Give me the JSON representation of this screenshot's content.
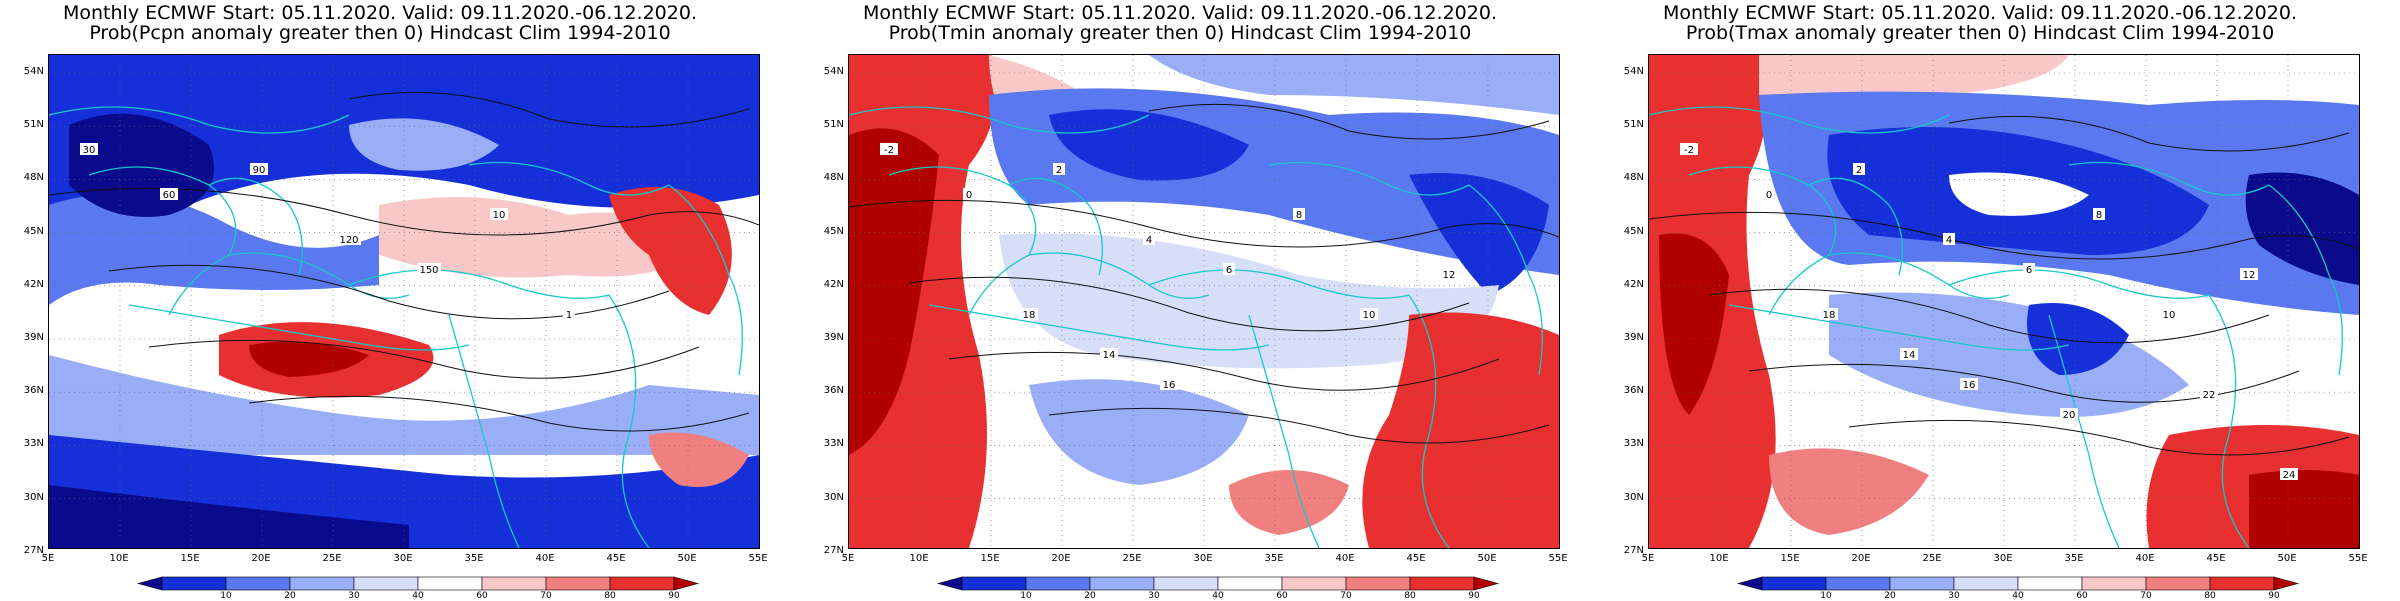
{
  "panels": [
    {
      "title_line1": "Monthly ECMWF Start: 05.11.2020. Valid: 09.11.2020.-06.12.2020.",
      "title_line2": "Prob(Pcpn anomaly greater then 0) Hindcast Clim 1994-2010",
      "variable": "Pcpn",
      "contour_labels": [
        "30",
        "60",
        "90",
        "120",
        "150",
        "10",
        "1"
      ],
      "colors": {
        "dominant": "#1f3fd8",
        "accent": "#e01010"
      }
    },
    {
      "title_line1": "Monthly ECMWF Start: 05.11.2020. Valid: 09.11.2020.-06.12.2020.",
      "title_line2": "Prob(Tmin anomaly greater then 0) Hindcast Clim 1994-2010",
      "variable": "Tmin",
      "contour_labels": [
        "-2",
        "0",
        "2",
        "4",
        "6",
        "8",
        "10",
        "12",
        "14",
        "16",
        "18"
      ],
      "colors": {
        "dominant": "#1f3fd8",
        "accent": "#e01010"
      }
    },
    {
      "title_line1": "Monthly ECMWF Start: 05.11.2020. Valid: 09.11.2020.-06.12.2020.",
      "title_line2": "Prob(Tmax anomaly greater then 0) Hindcast Clim 1994-2010",
      "variable": "Tmax",
      "contour_labels": [
        "-2",
        "0",
        "2",
        "4",
        "6",
        "8",
        "10",
        "12",
        "14",
        "16",
        "18",
        "20",
        "22",
        "24"
      ],
      "colors": {
        "dominant": "#1f3fd8",
        "accent": "#e01010"
      }
    }
  ],
  "lat_labels": [
    "54N",
    "51N",
    "48N",
    "45N",
    "42N",
    "39N",
    "36N",
    "33N",
    "30N",
    "27N"
  ],
  "lon_labels": [
    "5E",
    "10E",
    "15E",
    "20E",
    "25E",
    "30E",
    "35E",
    "40E",
    "45E",
    "50E",
    "55E"
  ],
  "colorbar": {
    "labels": [
      "10",
      "20",
      "30",
      "40",
      "60",
      "70",
      "80",
      "90"
    ],
    "colors": [
      "#0a0a8c",
      "#1530d8",
      "#5a78f0",
      "#9aaef8",
      "#d6def8",
      "#ffffff",
      "#f8c8c8",
      "#f08080",
      "#e83030",
      "#b00000"
    ]
  }
}
